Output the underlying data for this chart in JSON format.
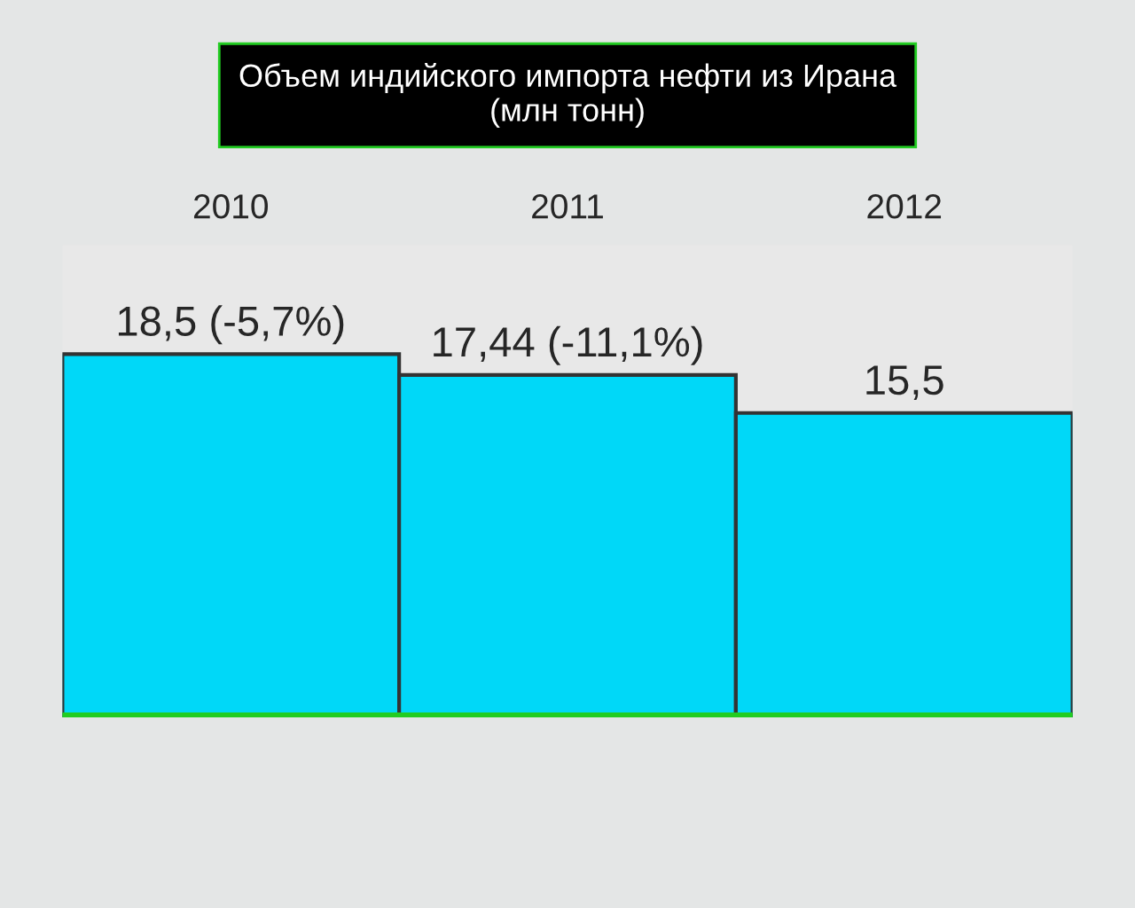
{
  "chart_data": {
    "type": "bar",
    "title": "Объем индийского импорта нефти из Ирана\n(млн тонн)",
    "categories": [
      "2010",
      "2011",
      "2012"
    ],
    "values": [
      18.5,
      17.44,
      15.5
    ],
    "value_labels": [
      "18,5 (-5,7%)",
      "17,44 (-11,1%)",
      "15,5"
    ],
    "color": "#00d8f8",
    "grid": false,
    "legend": false
  }
}
